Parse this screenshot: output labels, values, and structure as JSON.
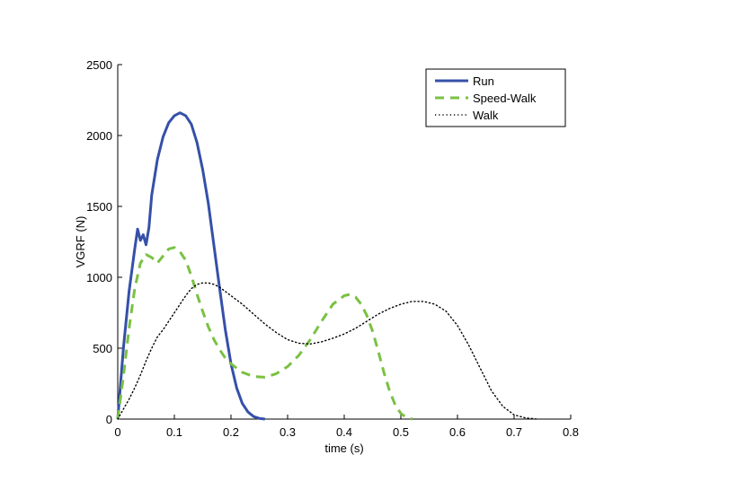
{
  "chart_data": {
    "type": "line",
    "title": "",
    "xlabel": "time (s)",
    "ylabel": "VGRF (N)",
    "xlim": [
      0,
      0.8
    ],
    "ylim": [
      0,
      2500
    ],
    "xticks": [
      "0",
      "0.1",
      "0.2",
      "0.3",
      "0.4",
      "0.5",
      "0.6",
      "0.7",
      "0.8"
    ],
    "yticks": [
      "0",
      "500",
      "1000",
      "1500",
      "2000",
      "2500"
    ],
    "grid": false,
    "legend_position": "top-right",
    "series": [
      {
        "name": "Run",
        "style": "solid",
        "color": "#3550a8",
        "x": [
          0,
          0.01,
          0.02,
          0.03,
          0.035,
          0.04,
          0.045,
          0.05,
          0.055,
          0.06,
          0.07,
          0.08,
          0.09,
          0.1,
          0.11,
          0.12,
          0.13,
          0.14,
          0.15,
          0.16,
          0.17,
          0.18,
          0.19,
          0.2,
          0.21,
          0.22,
          0.23,
          0.24,
          0.25,
          0.26
        ],
        "y": [
          0,
          500,
          900,
          1200,
          1340,
          1260,
          1300,
          1230,
          1350,
          1580,
          1830,
          1990,
          2090,
          2140,
          2160,
          2140,
          2080,
          1950,
          1760,
          1520,
          1220,
          920,
          630,
          390,
          220,
          110,
          50,
          18,
          5,
          0
        ]
      },
      {
        "name": "Speed-Walk",
        "style": "dashed",
        "color": "#7ac143",
        "x": [
          0,
          0.01,
          0.02,
          0.03,
          0.04,
          0.05,
          0.06,
          0.07,
          0.08,
          0.09,
          0.1,
          0.11,
          0.12,
          0.13,
          0.14,
          0.15,
          0.16,
          0.17,
          0.18,
          0.19,
          0.2,
          0.22,
          0.24,
          0.26,
          0.28,
          0.3,
          0.32,
          0.34,
          0.36,
          0.38,
          0.4,
          0.41,
          0.42,
          0.43,
          0.44,
          0.45,
          0.46,
          0.47,
          0.48,
          0.49,
          0.5,
          0.51,
          0.52
        ],
        "y": [
          0,
          300,
          640,
          920,
          1100,
          1160,
          1140,
          1100,
          1150,
          1200,
          1210,
          1180,
          1120,
          1010,
          880,
          760,
          650,
          560,
          490,
          430,
          390,
          330,
          300,
          295,
          320,
          370,
          450,
          560,
          690,
          810,
          870,
          880,
          860,
          810,
          730,
          620,
          480,
          330,
          200,
          100,
          40,
          10,
          0
        ]
      },
      {
        "name": "Walk",
        "style": "dotted",
        "color": "#000000",
        "x": [
          0,
          0.01,
          0.02,
          0.03,
          0.04,
          0.05,
          0.06,
          0.07,
          0.08,
          0.09,
          0.1,
          0.11,
          0.12,
          0.13,
          0.14,
          0.15,
          0.16,
          0.17,
          0.18,
          0.19,
          0.2,
          0.22,
          0.24,
          0.26,
          0.28,
          0.3,
          0.32,
          0.34,
          0.36,
          0.38,
          0.4,
          0.42,
          0.44,
          0.46,
          0.48,
          0.5,
          0.52,
          0.54,
          0.56,
          0.58,
          0.6,
          0.62,
          0.64,
          0.66,
          0.68,
          0.7,
          0.72,
          0.74
        ],
        "y": [
          0,
          70,
          140,
          220,
          310,
          410,
          500,
          580,
          630,
          690,
          750,
          810,
          870,
          920,
          950,
          960,
          960,
          950,
          930,
          900,
          870,
          810,
          740,
          670,
          610,
          560,
          535,
          530,
          545,
          570,
          600,
          640,
          690,
          740,
          780,
          810,
          830,
          830,
          810,
          760,
          660,
          520,
          360,
          200,
          90,
          30,
          8,
          0
        ]
      }
    ]
  }
}
